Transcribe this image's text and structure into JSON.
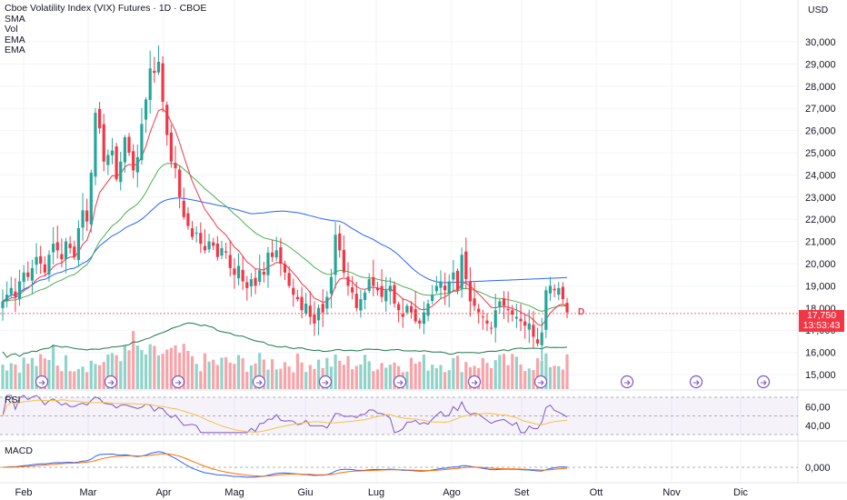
{
  "header": {
    "title": "Cboe Volatility Index (VIX) Futures · 1D · CBOE",
    "indicators": [
      "SMA",
      "Vol",
      "EMA",
      "EMA"
    ],
    "currency": "USD"
  },
  "price_tag": {
    "value": "17,750",
    "countdown": "13:53:43",
    "badge": "D"
  },
  "panels": {
    "rsi_label": "RSI",
    "macd_label": "MACD"
  },
  "colors": {
    "up": "#26a69a",
    "down": "#f23645",
    "vol_up": "#8fd3c9",
    "vol_down": "#f7a4a9",
    "ema_fast": "#f23645",
    "ema_slow": "#4caf50",
    "sma": "#2962ff",
    "vol_ma": "#1e7a4a",
    "rsi": "#7e57c2",
    "rsi_ma": "#f5c146",
    "macd": "#2962ff",
    "signal": "#ff6d00"
  },
  "chart_data": [
    {
      "type": "candlestick",
      "title": "Cboe Volatility Index (VIX) Futures · 1D · CBOE",
      "x_labels": [
        "Feb",
        "Mar",
        "Apr",
        "Mag",
        "Giu",
        "Lug",
        "Ago",
        "Set",
        "Ott",
        "Nov",
        "Dic"
      ],
      "y_ticks": [
        "15,000",
        "16,000",
        "17,000",
        "18,000",
        "19,000",
        "20,000",
        "21,000",
        "22,000",
        "23,000",
        "24,000",
        "25,000",
        "26,000",
        "27,000",
        "28,000",
        "29,000",
        "30,000"
      ],
      "ylim": [
        14700,
        30400
      ],
      "close_approx": [
        18.3,
        18.6,
        18.9,
        18.5,
        19.2,
        19.6,
        19.4,
        19.8,
        20.3,
        20.0,
        19.6,
        20.4,
        20.9,
        20.6,
        20.2,
        21.0,
        20.7,
        20.3,
        21.6,
        22.4,
        21.9,
        24.1,
        26.8,
        26.1,
        24.6,
        24.9,
        25.1,
        23.8,
        24.6,
        25.7,
        25.0,
        24.2,
        24.8,
        26.3,
        27.4,
        28.8,
        28.6,
        29.1,
        27.3,
        25.8,
        24.6,
        24.3,
        23.0,
        22.1,
        21.7,
        21.2,
        21.4,
        20.9,
        20.6,
        21.0,
        20.8,
        20.3,
        20.7,
        20.5,
        19.8,
        19.5,
        19.9,
        19.2,
        18.9,
        19.3,
        19.0,
        19.7,
        19.5,
        20.5,
        20.3,
        20.6,
        20.0,
        19.6,
        19.0,
        18.6,
        18.4,
        17.9,
        18.2,
        17.6,
        17.3,
        18.0,
        17.8,
        18.5,
        19.4,
        21.3,
        20.6,
        19.6,
        19.0,
        18.7,
        18.0,
        18.4,
        18.7,
        19.3,
        19.0,
        18.8,
        18.5,
        18.8,
        19.0,
        18.2,
        17.9,
        17.6,
        18.1,
        17.8,
        17.4,
        17.3,
        17.8,
        18.2,
        18.6,
        19.0,
        19.2,
        18.8,
        19.2,
        19.6,
        18.8,
        20.4,
        19.3,
        18.3,
        18.1,
        17.8,
        17.6,
        17.3,
        17.1,
        17.9,
        18.3,
        18.1,
        17.9,
        17.7,
        17.6,
        17.4,
        17.2,
        17.3,
        16.7,
        16.4,
        16.9,
        18.8,
        19.0,
        18.8,
        18.9,
        18.4,
        17.8
      ],
      "volume_ma": "Vol",
      "overlays": [
        "SMA",
        "EMA",
        "EMA"
      ]
    },
    {
      "type": "line",
      "name": "RSI",
      "y_ticks": [
        "40,00",
        "60,00"
      ],
      "band": [
        30,
        70
      ]
    },
    {
      "type": "line",
      "name": "MACD",
      "y_ticks": [
        "0,000"
      ]
    }
  ]
}
